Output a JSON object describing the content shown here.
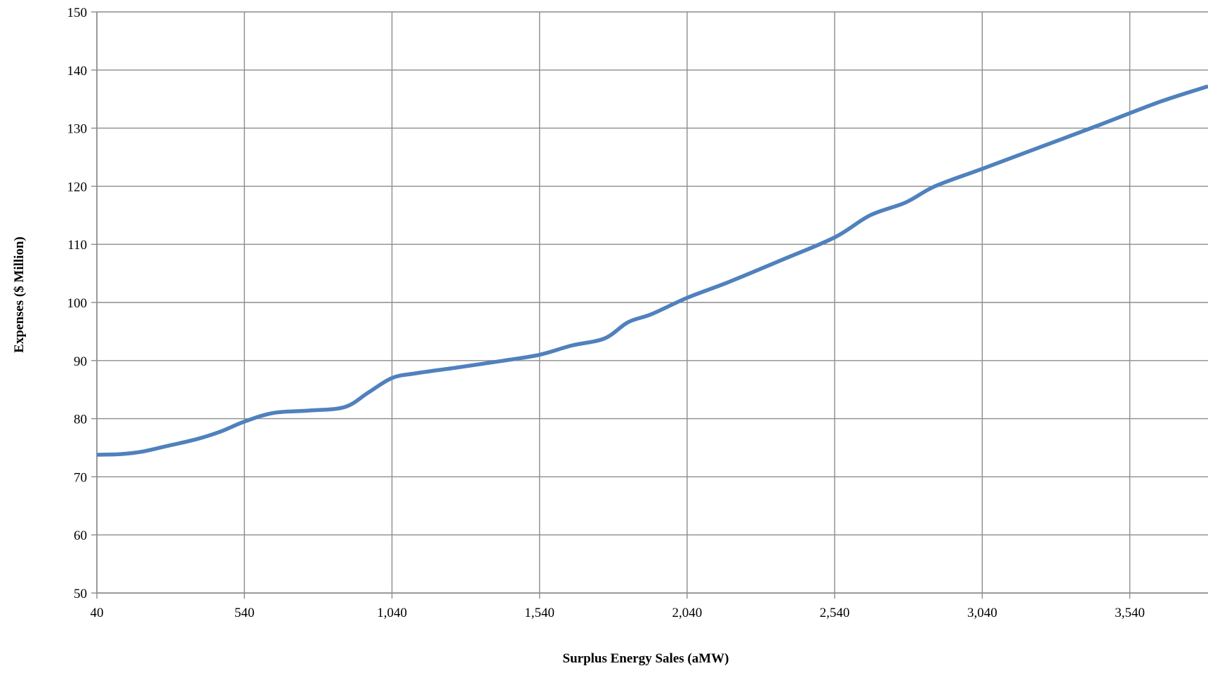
{
  "chart_data": {
    "type": "line",
    "title": "",
    "xlabel": "Surplus Energy Sales (aMW)",
    "ylabel": "Expenses ($ Million)",
    "xlim": [
      40,
      3805
    ],
    "ylim": [
      50,
      150
    ],
    "x_ticks": [
      40,
      540,
      1040,
      1540,
      2040,
      2540,
      3040,
      3540
    ],
    "x_tick_labels": [
      "40",
      "540",
      "1,040",
      "1,540",
      "2,040",
      "2,540",
      "3,040",
      "3,540"
    ],
    "y_ticks": [
      50,
      60,
      70,
      80,
      90,
      100,
      110,
      120,
      130,
      140,
      150
    ],
    "y_tick_labels": [
      "50",
      "60",
      "70",
      "80",
      "90",
      "100",
      "110",
      "120",
      "130",
      "140",
      "150"
    ],
    "grid": true,
    "legend": "none",
    "series": [
      {
        "color": "#4F81BD",
        "x": [
          40,
          120,
          190,
          270,
          380,
          460,
          540,
          640,
          760,
          880,
          960,
          1040,
          1120,
          1260,
          1420,
          1540,
          1650,
          1760,
          1840,
          1920,
          2040,
          2180,
          2360,
          2540,
          2660,
          2780,
          2880,
          3040,
          3240,
          3440,
          3640,
          3805
        ],
        "y": [
          73.8,
          73.9,
          74.3,
          75.2,
          76.5,
          77.8,
          79.5,
          81.0,
          81.4,
          82.0,
          84.5,
          87.0,
          87.8,
          88.8,
          90.0,
          91.0,
          92.6,
          93.8,
          96.6,
          98.0,
          100.8,
          103.5,
          107.3,
          111.2,
          115.0,
          117.2,
          120.0,
          123.0,
          126.8,
          130.6,
          134.5,
          137.2
        ]
      }
    ]
  }
}
